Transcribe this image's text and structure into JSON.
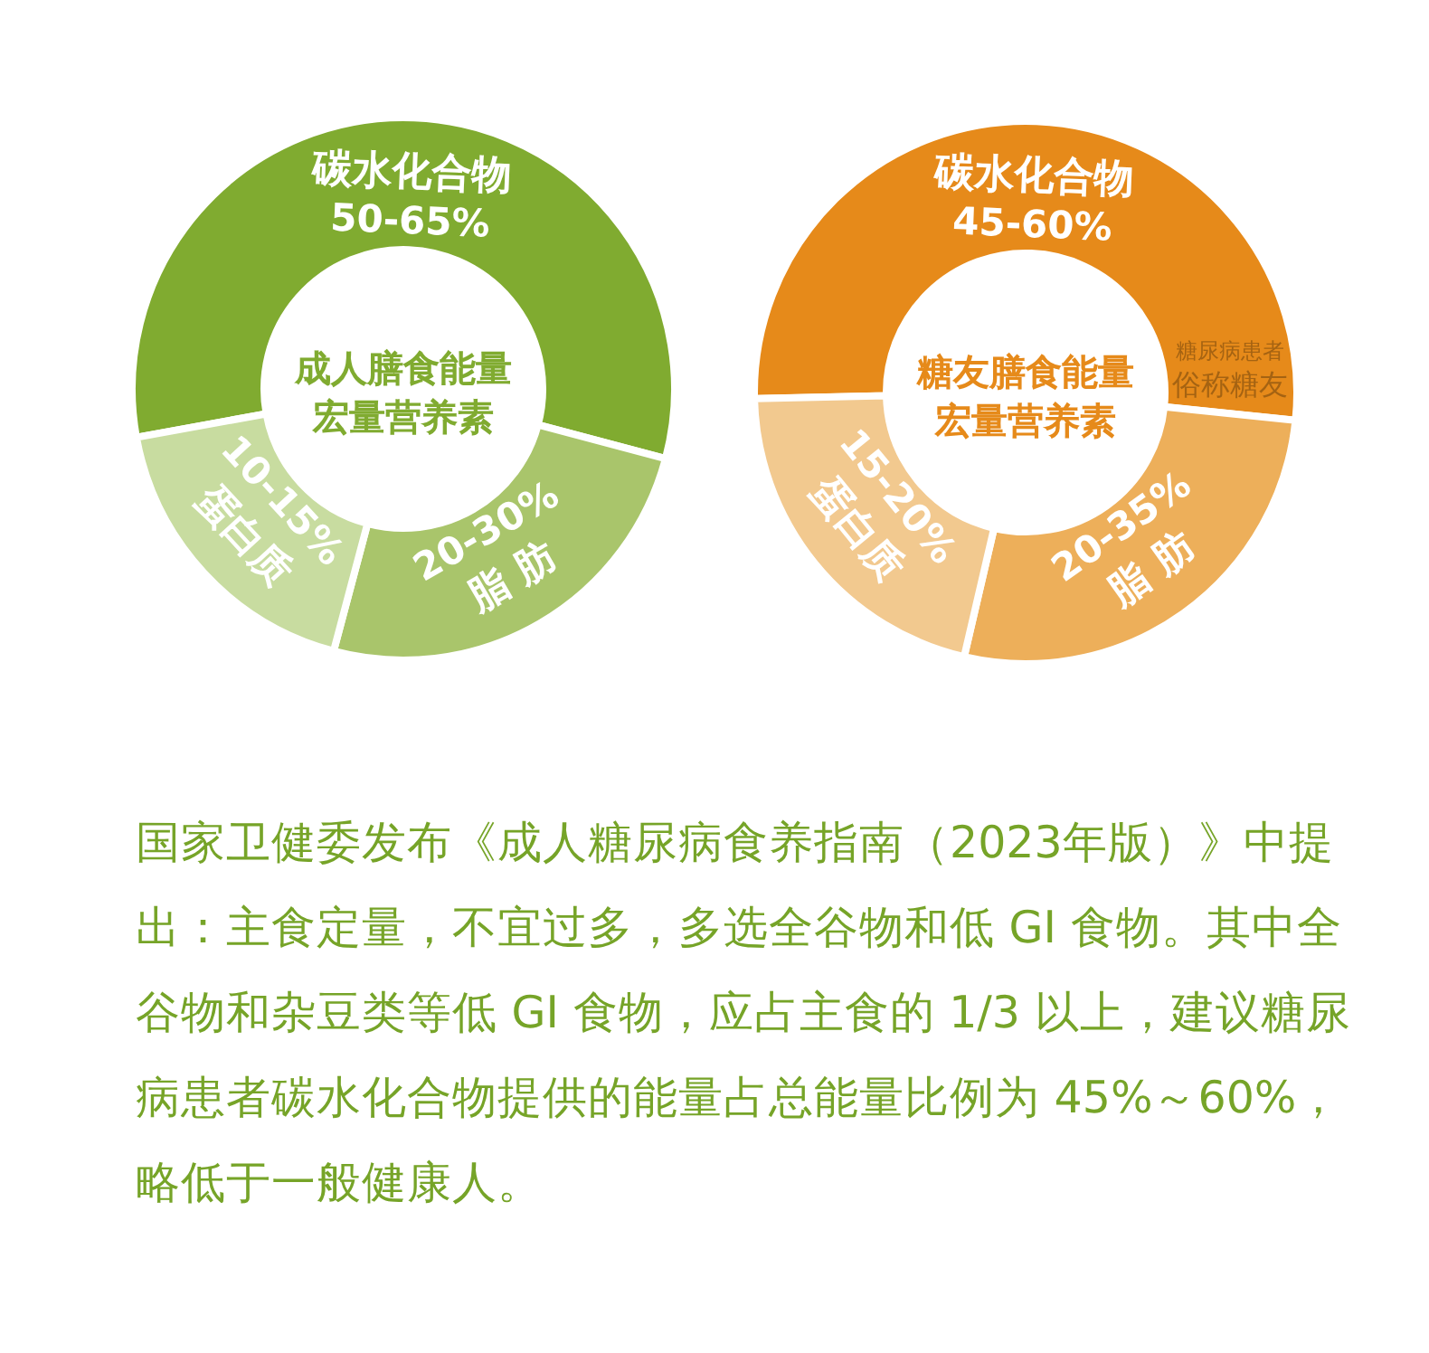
{
  "chart_data": [
    {
      "type": "donut",
      "title": "成人膳食能量宏量营养素",
      "categories": [
        "碳水化合物",
        "脂 肪",
        "蛋白质"
      ],
      "values": [
        57,
        25,
        18
      ],
      "colors": [
        "#80ab30",
        "#a9c56b",
        "#c8dca0"
      ],
      "annotations": [
        "50-65%",
        "20-30%",
        "10-15%"
      ]
    },
    {
      "type": "donut",
      "title": "糖友膳食能量宏量营养素",
      "categories": [
        "碳水化合物",
        "脂 肪",
        "蛋白质"
      ],
      "values": [
        52,
        27,
        21
      ],
      "colors": [
        "#e68a1a",
        "#edaf5a",
        "#f2c98f"
      ],
      "annotations": [
        "45-60%",
        "20-35%",
        "15-20%",
        "糖尿病患者俗称糖友"
      ]
    },
    {
      "type": "other",
      "annotations": [
        "国家卫健委发布《成人糖尿病食养指南（2023年版）》中提出：主食定量，不宜过多，多选全谷物和低 GI 食物。其中全谷物和杂豆类等低 GI 食物，应占主食的 1/3 以上，建议糖尿病患者碳水化合物提供的能量占总能量比例为 45%～60%，略低于一般健康人。"
      ]
    }
  ]
}
